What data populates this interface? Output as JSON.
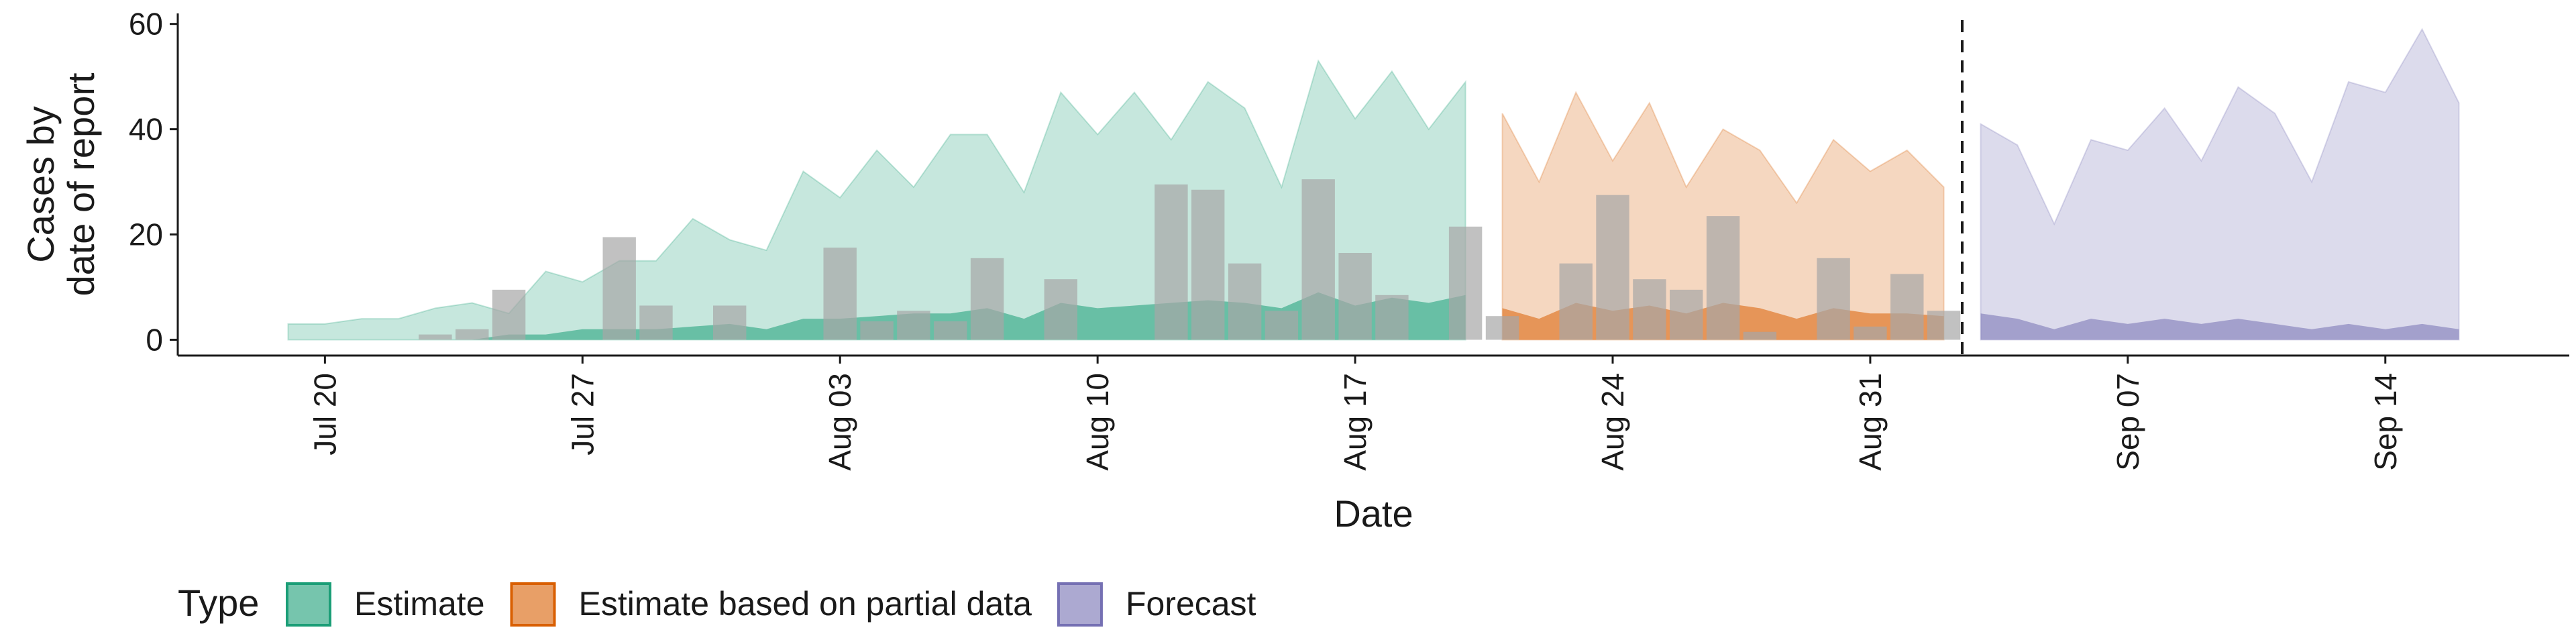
{
  "chart_data": {
    "type": "area",
    "xlabel": "Date",
    "ylabel_lines": [
      "Cases by",
      "date of report"
    ],
    "ylim": [
      -3,
      62
    ],
    "yticks": [
      0,
      20,
      40,
      60
    ],
    "x_start_date": "2020-07-20",
    "xticks": [
      "Jul 20",
      "Jul 27",
      "Aug 03",
      "Aug 10",
      "Aug 17",
      "Aug 24",
      "Aug 31",
      "Sep 07",
      "Sep 14"
    ],
    "xticks_dates": [
      "2020-07-20",
      "2020-07-27",
      "2020-08-03",
      "2020-08-10",
      "2020-08-17",
      "2020-08-24",
      "2020-08-31",
      "2020-09-07",
      "2020-09-14"
    ],
    "xlim": [
      "2020-07-16",
      "2020-09-19"
    ],
    "forecast_line_date": "2020-09-02",
    "legend": {
      "title": "Type",
      "position": "bottom",
      "items": [
        {
          "label": "Estimate",
          "color": "#1b9e77"
        },
        {
          "label": "Estimate based on partial data",
          "color": "#d95f02"
        },
        {
          "label": "Forecast",
          "color": "#7570b3"
        }
      ]
    },
    "series": [
      {
        "name": "Estimate",
        "color": "#1b9e77",
        "x": [
          "2020-07-19",
          "2020-07-20",
          "2020-07-21",
          "2020-07-22",
          "2020-07-23",
          "2020-07-24",
          "2020-07-25",
          "2020-07-26",
          "2020-07-27",
          "2020-07-28",
          "2020-07-29",
          "2020-07-30",
          "2020-07-31",
          "2020-08-01",
          "2020-08-02",
          "2020-08-03",
          "2020-08-04",
          "2020-08-05",
          "2020-08-06",
          "2020-08-07",
          "2020-08-08",
          "2020-08-09",
          "2020-08-10",
          "2020-08-11",
          "2020-08-12",
          "2020-08-13",
          "2020-08-14",
          "2020-08-15",
          "2020-08-16",
          "2020-08-17",
          "2020-08-18",
          "2020-08-19",
          "2020-08-20"
        ],
        "upper": [
          3,
          3,
          4,
          4,
          6,
          7,
          5,
          13,
          11,
          15,
          15,
          23,
          19,
          17,
          32,
          27,
          36,
          29,
          39,
          39,
          28,
          47,
          39,
          47,
          38,
          49,
          44,
          29,
          53,
          42,
          51,
          40,
          49
        ],
        "lower": [
          0,
          0,
          0,
          0,
          0,
          0,
          0,
          0,
          0,
          0,
          0,
          0,
          0,
          0,
          0,
          0,
          0,
          0,
          0,
          0,
          0,
          0,
          0,
          0,
          0,
          0,
          0,
          0,
          0,
          0,
          0,
          0,
          0
        ],
        "inner": [
          0,
          0,
          0,
          0,
          0,
          0,
          1,
          1,
          2,
          2,
          2,
          2.5,
          3,
          2,
          4,
          4,
          4.5,
          5,
          5,
          6,
          4,
          7,
          6,
          6.5,
          7,
          7.5,
          7,
          6,
          9,
          6.5,
          8,
          7,
          8.5
        ]
      },
      {
        "name": "Estimate based on partial data",
        "color": "#d95f02",
        "x": [
          "2020-08-21",
          "2020-08-22",
          "2020-08-23",
          "2020-08-24",
          "2020-08-25",
          "2020-08-26",
          "2020-08-27",
          "2020-08-28",
          "2020-08-29",
          "2020-08-30",
          "2020-08-31",
          "2020-09-01",
          "2020-09-02"
        ],
        "upper": [
          43,
          30,
          47,
          34,
          45,
          29,
          40,
          36,
          26,
          38,
          32,
          36,
          29
        ],
        "lower": [
          0,
          0,
          0,
          0,
          0,
          0,
          0,
          0,
          0,
          0,
          0,
          0,
          0
        ],
        "inner": [
          6,
          4,
          7,
          5.5,
          6.5,
          5,
          7,
          6,
          4,
          6,
          5,
          5,
          4.5
        ]
      },
      {
        "name": "Forecast",
        "color": "#7570b3",
        "x": [
          "2020-09-03",
          "2020-09-04",
          "2020-09-05",
          "2020-09-06",
          "2020-09-07",
          "2020-09-08",
          "2020-09-09",
          "2020-09-10",
          "2020-09-11",
          "2020-09-12",
          "2020-09-13",
          "2020-09-14",
          "2020-09-15",
          "2020-09-16"
        ],
        "upper": [
          41,
          37,
          22,
          38,
          36,
          44,
          34,
          48,
          43,
          30,
          49,
          47,
          59,
          45
        ],
        "lower": [
          0,
          0,
          0,
          0,
          0,
          0,
          0,
          0,
          0,
          0,
          0,
          0,
          0,
          0
        ],
        "inner": [
          5,
          4,
          2,
          4,
          3,
          4,
          3,
          4,
          3,
          2,
          3,
          2,
          3,
          2
        ]
      }
    ],
    "reported_cases": {
      "color": "#a6a6a6",
      "x": [
        "2020-07-23",
        "2020-07-24",
        "2020-07-25",
        "2020-07-28",
        "2020-07-29",
        "2020-07-31",
        "2020-08-03",
        "2020-08-04",
        "2020-08-05",
        "2020-08-06",
        "2020-08-07",
        "2020-08-09",
        "2020-08-12",
        "2020-08-13",
        "2020-08-14",
        "2020-08-15",
        "2020-08-16",
        "2020-08-17",
        "2020-08-18",
        "2020-08-20",
        "2020-08-21",
        "2020-08-23",
        "2020-08-24",
        "2020-08-25",
        "2020-08-26",
        "2020-08-27",
        "2020-08-28",
        "2020-08-30",
        "2020-08-31",
        "2020-09-01",
        "2020-09-02"
      ],
      "values": [
        1,
        2,
        9.5,
        19.5,
        6.5,
        6.5,
        17.5,
        3.5,
        5.5,
        3.5,
        15.5,
        11.5,
        29.5,
        28.5,
        14.5,
        5.5,
        30.5,
        16.5,
        8.5,
        21.5,
        4.5,
        14.5,
        27.5,
        11.5,
        9.5,
        23.5,
        1.5,
        15.5,
        2.5,
        12.5,
        5.5
      ]
    }
  }
}
